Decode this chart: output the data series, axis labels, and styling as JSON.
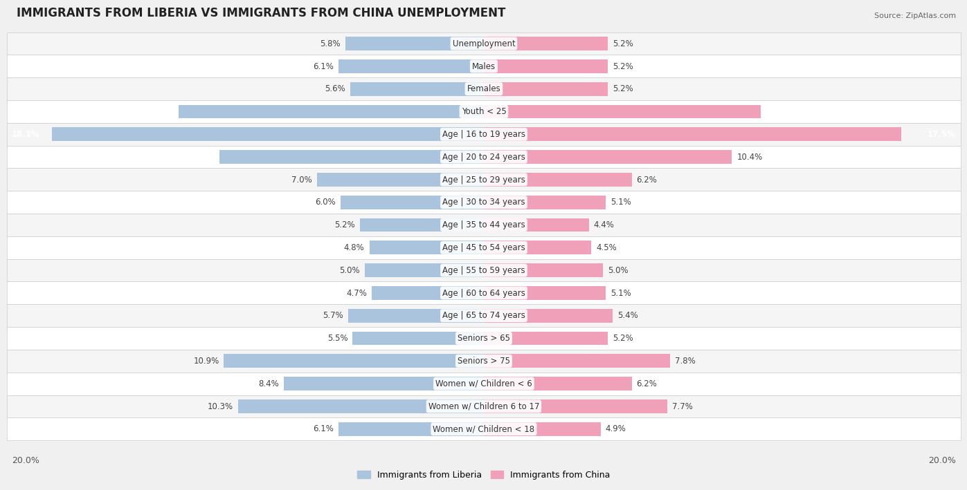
{
  "title": "IMMIGRANTS FROM LIBERIA VS IMMIGRANTS FROM CHINA UNEMPLOYMENT",
  "source": "Source: ZipAtlas.com",
  "categories": [
    "Unemployment",
    "Males",
    "Females",
    "Youth < 25",
    "Age | 16 to 19 years",
    "Age | 20 to 24 years",
    "Age | 25 to 29 years",
    "Age | 30 to 34 years",
    "Age | 35 to 44 years",
    "Age | 45 to 54 years",
    "Age | 55 to 59 years",
    "Age | 60 to 64 years",
    "Age | 65 to 74 years",
    "Seniors > 65",
    "Seniors > 75",
    "Women w/ Children < 6",
    "Women w/ Children 6 to 17",
    "Women w/ Children < 18"
  ],
  "liberia_values": [
    5.8,
    6.1,
    5.6,
    12.8,
    18.1,
    11.1,
    7.0,
    6.0,
    5.2,
    4.8,
    5.0,
    4.7,
    5.7,
    5.5,
    10.9,
    8.4,
    10.3,
    6.1
  ],
  "china_values": [
    5.2,
    5.2,
    5.2,
    11.6,
    17.5,
    10.4,
    6.2,
    5.1,
    4.4,
    4.5,
    5.0,
    5.1,
    5.4,
    5.2,
    7.8,
    6.2,
    7.7,
    4.9
  ],
  "liberia_color": "#aac4de",
  "china_color": "#f0a0b8",
  "liberia_label": "Immigrants from Liberia",
  "china_label": "Immigrants from China",
  "background_color": "#f0f0f0",
  "max_value": 20.0,
  "title_fontsize": 12,
  "label_fontsize": 8.5,
  "value_fontsize": 8.5
}
